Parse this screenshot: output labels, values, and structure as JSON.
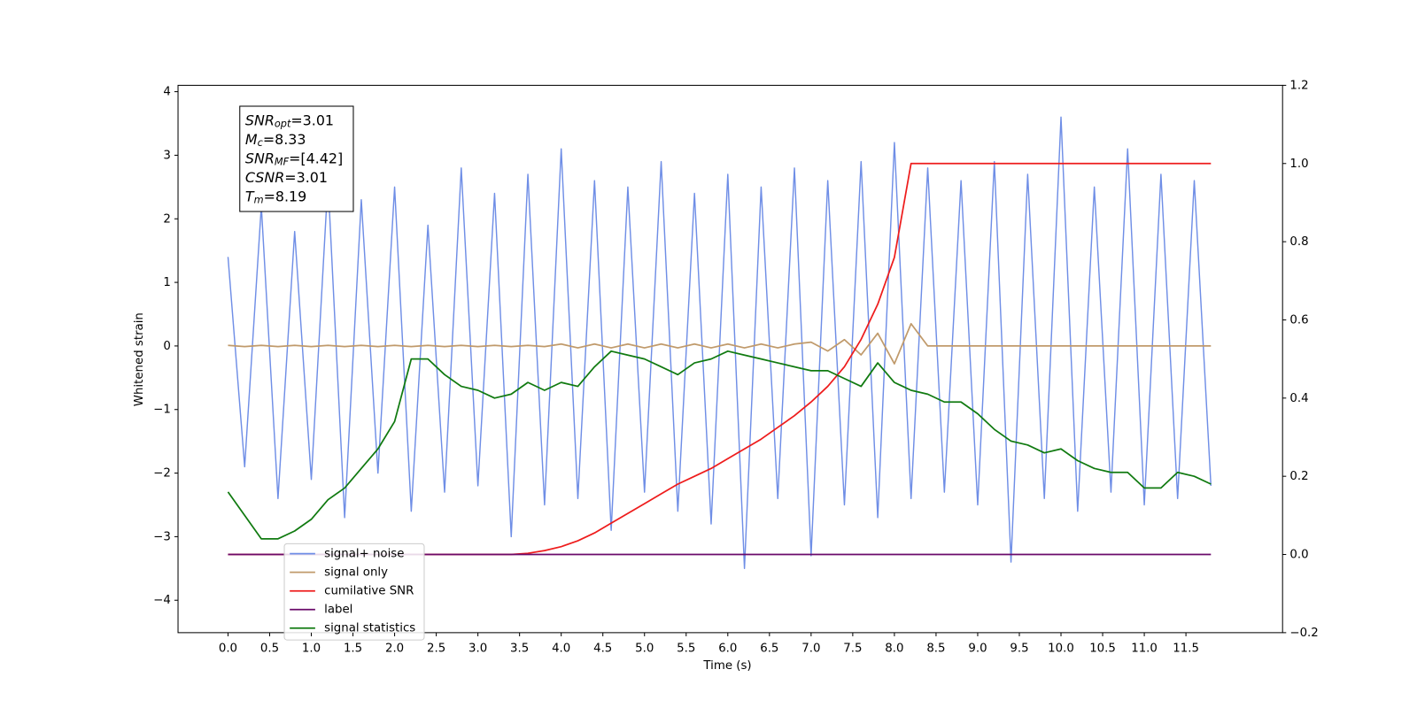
{
  "chart_data": {
    "type": "line",
    "xlabel": "Time (s)",
    "ylabel": "Whitened strain",
    "x": [
      0,
      0.2,
      0.4,
      0.6,
      0.8,
      1.0,
      1.2,
      1.4,
      1.6,
      1.8,
      2.0,
      2.2,
      2.4,
      2.6,
      2.8,
      3.0,
      3.2,
      3.4,
      3.6,
      3.8,
      4.0,
      4.2,
      4.4,
      4.6,
      4.8,
      5.0,
      5.2,
      5.4,
      5.6,
      5.8,
      6.0,
      6.2,
      6.4,
      6.6,
      6.8,
      7.0,
      7.2,
      7.4,
      7.6,
      7.8,
      8.0,
      8.2,
      8.4,
      8.6,
      8.8,
      9.0,
      9.2,
      9.4,
      9.6,
      9.8,
      10.0,
      10.2,
      10.4,
      10.6,
      10.8,
      11.0,
      11.2,
      11.4,
      11.6,
      11.8
    ],
    "series": [
      {
        "name": "signal+ noise",
        "color": "#6f8ee6",
        "values": [
          1.4,
          -1.9,
          2.2,
          -2.4,
          1.8,
          -2.1,
          2.6,
          -2.7,
          2.3,
          -2.0,
          2.5,
          -2.6,
          1.9,
          -2.3,
          2.8,
          -2.2,
          2.4,
          -3.0,
          2.7,
          -2.5,
          3.1,
          -2.4,
          2.6,
          -2.9,
          2.5,
          -2.3,
          2.9,
          -2.6,
          2.4,
          -2.8,
          2.7,
          -3.5,
          2.5,
          -2.4,
          2.8,
          -3.3,
          2.6,
          -2.5,
          2.9,
          -2.7,
          3.2,
          -2.4,
          2.8,
          -2.3,
          2.6,
          -2.5,
          2.9,
          -3.4,
          2.7,
          -2.4,
          3.6,
          -2.6,
          2.5,
          -2.3,
          3.1,
          -2.5,
          2.7,
          -2.4,
          2.6,
          -2.2
        ]
      },
      {
        "name": "signal only",
        "color": "#c09a6b",
        "values": [
          0.01,
          -0.01,
          0.01,
          -0.01,
          0.01,
          -0.01,
          0.01,
          -0.01,
          0.01,
          -0.01,
          0.01,
          -0.01,
          0.01,
          -0.01,
          0.01,
          -0.01,
          0.01,
          -0.01,
          0.01,
          -0.01,
          0.03,
          -0.03,
          0.03,
          -0.03,
          0.03,
          -0.03,
          0.03,
          -0.03,
          0.03,
          -0.03,
          0.03,
          -0.03,
          0.03,
          -0.03,
          0.03,
          0.06,
          -0.08,
          0.1,
          -0.14,
          0.2,
          -0.28,
          0.35,
          0,
          0,
          0,
          0,
          0,
          0,
          0,
          0,
          0,
          0,
          0,
          0,
          0,
          0,
          0,
          0,
          0,
          0
        ]
      },
      {
        "name": "cumilative SNR",
        "color": "#ee1c1c",
        "axis": "y2",
        "values": [
          0,
          0,
          0,
          0,
          0,
          0,
          0,
          0,
          0,
          0,
          0,
          0,
          0,
          0,
          0,
          0,
          0,
          0,
          0.003,
          0.01,
          0.02,
          0.035,
          0.055,
          0.08,
          0.105,
          0.13,
          0.155,
          0.18,
          0.2,
          0.22,
          0.245,
          0.27,
          0.295,
          0.325,
          0.355,
          0.39,
          0.43,
          0.48,
          0.55,
          0.64,
          0.76,
          1.0,
          1.0,
          1.0,
          1.0,
          1.0,
          1.0,
          1.0,
          1.0,
          1.0,
          1.0,
          1.0,
          1.0,
          1.0,
          1.0,
          1.0,
          1.0,
          1.0,
          1.0,
          1.0
        ]
      },
      {
        "name": "label",
        "color": "#6a0a6a",
        "axis": "y2",
        "values": [
          0,
          0,
          0,
          0,
          0,
          0,
          0,
          0,
          0,
          0,
          0,
          0,
          0,
          0,
          0,
          0,
          0,
          0,
          0,
          0,
          0,
          0,
          0,
          0,
          0,
          0,
          0,
          0,
          0,
          0,
          0,
          0,
          0,
          0,
          0,
          0,
          0,
          0,
          0,
          0,
          0,
          0,
          0,
          0,
          0,
          0,
          0,
          0,
          0,
          0,
          0,
          0,
          0,
          0,
          0,
          0,
          0,
          0,
          0,
          0
        ]
      },
      {
        "name": "signal statistics",
        "color": "#107a10",
        "axis": "y2",
        "values": [
          0.16,
          0.1,
          0.04,
          0.04,
          0.06,
          0.09,
          0.14,
          0.17,
          0.22,
          0.27,
          0.34,
          0.5,
          0.5,
          0.46,
          0.43,
          0.42,
          0.4,
          0.41,
          0.44,
          0.42,
          0.44,
          0.43,
          0.48,
          0.52,
          0.51,
          0.5,
          0.48,
          0.46,
          0.49,
          0.5,
          0.52,
          0.51,
          0.5,
          0.49,
          0.48,
          0.47,
          0.47,
          0.45,
          0.43,
          0.49,
          0.44,
          0.42,
          0.41,
          0.39,
          0.39,
          0.36,
          0.32,
          0.29,
          0.28,
          0.26,
          0.27,
          0.24,
          0.22,
          0.21,
          0.21,
          0.17,
          0.17,
          0.21,
          0.2,
          0.18
        ]
      }
    ],
    "xlim": [
      -0.6,
      12.66
    ],
    "ylim": [
      -4.51,
      4.1
    ],
    "y2lim": [
      -0.2,
      1.2
    ],
    "xticks": [
      {
        "value": 0,
        "label": "0.0"
      },
      {
        "value": 0.5,
        "label": "0.5"
      },
      {
        "value": 1,
        "label": "1.0"
      },
      {
        "value": 1.5,
        "label": "1.5"
      },
      {
        "value": 2,
        "label": "2.0"
      },
      {
        "value": 2.5,
        "label": "2.5"
      },
      {
        "value": 3,
        "label": "3.0"
      },
      {
        "value": 3.5,
        "label": "3.5"
      },
      {
        "value": 4,
        "label": "4.0"
      },
      {
        "value": 4.5,
        "label": "4.5"
      },
      {
        "value": 5,
        "label": "5.0"
      },
      {
        "value": 5.5,
        "label": "5.5"
      },
      {
        "value": 6,
        "label": "6.0"
      },
      {
        "value": 6.5,
        "label": "6.5"
      },
      {
        "value": 7,
        "label": "7.0"
      },
      {
        "value": 7.5,
        "label": "7.5"
      },
      {
        "value": 8,
        "label": "8.0"
      },
      {
        "value": 8.5,
        "label": "8.5"
      },
      {
        "value": 9,
        "label": "9.0"
      },
      {
        "value": 9.5,
        "label": "9.5"
      },
      {
        "value": 10,
        "label": "10.0"
      },
      {
        "value": 10.5,
        "label": "10.5"
      },
      {
        "value": 11,
        "label": "11.0"
      },
      {
        "value": 11.5,
        "label": "11.5"
      }
    ],
    "yticks": [
      {
        "value": -4,
        "label": "−4"
      },
      {
        "value": -3,
        "label": "−3"
      },
      {
        "value": -2,
        "label": "−2"
      },
      {
        "value": -1,
        "label": "−1"
      },
      0,
      1,
      2,
      3,
      4
    ],
    "y2ticks": [
      {
        "value": -0.2,
        "label": "−0.2"
      },
      {
        "value": 0,
        "label": "0.0"
      },
      {
        "value": 0.2,
        "label": "0.2"
      },
      {
        "value": 0.4,
        "label": "0.4"
      },
      {
        "value": 0.6,
        "label": "0.6"
      },
      {
        "value": 0.8,
        "label": "0.8"
      },
      {
        "value": 1,
        "label": "1.0"
      },
      {
        "value": 1.2,
        "label": "1.2"
      }
    ],
    "legend": "lower left",
    "annotation": [
      {
        "base": "SNR",
        "sub": "opt",
        "text": "=3.01"
      },
      {
        "base": "M",
        "sub": "c",
        "text": "=8.33"
      },
      {
        "base": "SNR",
        "sub": "MF",
        "text": "=[4.42]"
      },
      {
        "base": "CSNR",
        "text": "=3.01"
      },
      {
        "base": "T",
        "sub": "m",
        "text": "=8.19"
      }
    ]
  }
}
